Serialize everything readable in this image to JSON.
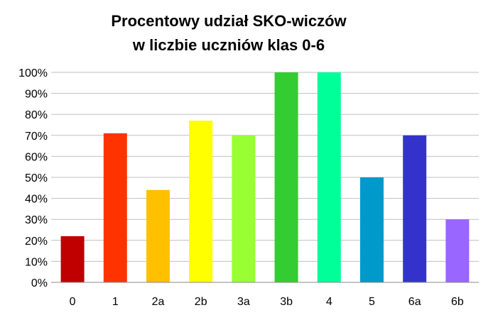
{
  "chart_data": {
    "type": "bar",
    "title": [
      "Procentowy udział SKO-wiczów",
      "w liczbie uczniów klas 0-6"
    ],
    "xlabel": "",
    "ylabel": "",
    "categories": [
      "0",
      "1",
      "2a",
      "2b",
      "3a",
      "3b",
      "4",
      "5",
      "6a",
      "6b"
    ],
    "values": [
      22,
      71,
      44,
      77,
      70,
      100,
      100,
      50,
      70,
      30
    ],
    "colors": [
      "#c00000",
      "#ff3300",
      "#ffc000",
      "#ffff00",
      "#99ff33",
      "#33cc33",
      "#00ff99",
      "#0099cc",
      "#3333cc",
      "#9966ff"
    ],
    "ylim": [
      0,
      100
    ],
    "yticks": [
      "0%",
      "10%",
      "20%",
      "30%",
      "40%",
      "50%",
      "60%",
      "70%",
      "80%",
      "90%",
      "100%"
    ],
    "grid": true,
    "legend": "none"
  }
}
